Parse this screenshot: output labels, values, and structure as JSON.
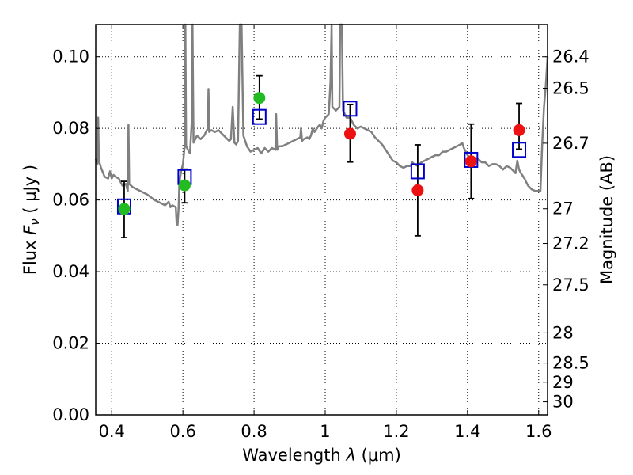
{
  "chart_data": {
    "type": "scatter",
    "xlabel": "Wavelength  λ (μm)",
    "ylabel": "Flux  Fν  ( μJy )",
    "ylabel_parts": {
      "prefix": "Flux  ",
      "symbol": "F",
      "subscript": "ν",
      "unit": "  ( μJy )"
    },
    "xlabel_parts": {
      "prefix": "Wavelength  ",
      "symbol": "λ",
      "unit": " (μm)"
    },
    "right_ylabel": "Magnitude (AB)",
    "xlim": [
      0.355,
      1.625
    ],
    "ylim": [
      0.0,
      0.109
    ],
    "grid": true,
    "x_ticks": [
      {
        "value": 0.4,
        "label": "0.4"
      },
      {
        "value": 0.6,
        "label": "0.6"
      },
      {
        "value": 0.8,
        "label": "0.8"
      },
      {
        "value": 1.0,
        "label": "1"
      },
      {
        "value": 1.2,
        "label": "1.2"
      },
      {
        "value": 1.4,
        "label": "1.4"
      },
      {
        "value": 1.6,
        "label": "1.6"
      }
    ],
    "y_ticks": [
      {
        "value": 0.0,
        "label": "0.00"
      },
      {
        "value": 0.02,
        "label": "0.02"
      },
      {
        "value": 0.04,
        "label": "0.04"
      },
      {
        "value": 0.06,
        "label": "0.06"
      },
      {
        "value": 0.08,
        "label": "0.08"
      },
      {
        "value": 0.1,
        "label": "0.10"
      }
    ],
    "right_ticks": [
      {
        "value": 26.4,
        "label": "26.4"
      },
      {
        "value": 26.5,
        "label": "26.5"
      },
      {
        "value": 26.7,
        "label": "26.7"
      },
      {
        "value": 27.0,
        "label": "27"
      },
      {
        "value": 27.2,
        "label": "27.2"
      },
      {
        "value": 27.5,
        "label": "27.5"
      },
      {
        "value": 28.0,
        "label": "28"
      },
      {
        "value": 28.5,
        "label": "28.5"
      },
      {
        "value": 29.0,
        "label": "29"
      },
      {
        "value": 30.0,
        "label": "30"
      }
    ],
    "colors": {
      "spectrum": "#808080",
      "model_box": "#0000cc",
      "green_point": "#22bb22",
      "red_point": "#ee1111",
      "error_bar": "#000000"
    },
    "spectrum": [
      [
        0.355,
        0.0715
      ],
      [
        0.36,
        0.07
      ],
      [
        0.362,
        0.083
      ],
      [
        0.364,
        0.071
      ],
      [
        0.37,
        0.069
      ],
      [
        0.38,
        0.0665
      ],
      [
        0.39,
        0.066
      ],
      [
        0.395,
        0.068
      ],
      [
        0.4,
        0.066
      ],
      [
        0.405,
        0.067
      ],
      [
        0.41,
        0.0665
      ],
      [
        0.42,
        0.066
      ],
      [
        0.43,
        0.064
      ],
      [
        0.44,
        0.0645
      ],
      [
        0.445,
        0.0625
      ],
      [
        0.447,
        0.081
      ],
      [
        0.449,
        0.0645
      ],
      [
        0.46,
        0.0635
      ],
      [
        0.48,
        0.0625
      ],
      [
        0.5,
        0.0615
      ],
      [
        0.52,
        0.06
      ],
      [
        0.54,
        0.059
      ],
      [
        0.55,
        0.0585
      ],
      [
        0.56,
        0.0595
      ],
      [
        0.565,
        0.058
      ],
      [
        0.57,
        0.0585
      ],
      [
        0.58,
        0.058
      ],
      [
        0.582,
        0.054
      ],
      [
        0.585,
        0.053
      ],
      [
        0.588,
        0.058
      ],
      [
        0.59,
        0.065
      ],
      [
        0.595,
        0.068
      ],
      [
        0.6,
        0.07
      ],
      [
        0.605,
        0.075
      ],
      [
        0.607,
        0.109
      ],
      [
        0.609,
        0.075
      ],
      [
        0.62,
        0.073
      ],
      [
        0.625,
        0.082
      ],
      [
        0.627,
        0.109
      ],
      [
        0.63,
        0.076
      ],
      [
        0.64,
        0.078
      ],
      [
        0.65,
        0.077
      ],
      [
        0.66,
        0.078
      ],
      [
        0.67,
        0.08
      ],
      [
        0.672,
        0.091
      ],
      [
        0.674,
        0.079
      ],
      [
        0.68,
        0.0795
      ],
      [
        0.69,
        0.079
      ],
      [
        0.7,
        0.0795
      ],
      [
        0.71,
        0.0785
      ],
      [
        0.72,
        0.0775
      ],
      [
        0.73,
        0.0765
      ],
      [
        0.735,
        0.077
      ],
      [
        0.74,
        0.086
      ],
      [
        0.745,
        0.076
      ],
      [
        0.75,
        0.0755
      ],
      [
        0.755,
        0.0765
      ],
      [
        0.76,
        0.109
      ],
      [
        0.765,
        0.109
      ],
      [
        0.77,
        0.078
      ],
      [
        0.78,
        0.075
      ],
      [
        0.79,
        0.0735
      ],
      [
        0.8,
        0.074
      ],
      [
        0.81,
        0.0745
      ],
      [
        0.82,
        0.073
      ],
      [
        0.83,
        0.0745
      ],
      [
        0.84,
        0.0735
      ],
      [
        0.85,
        0.0745
      ],
      [
        0.86,
        0.074
      ],
      [
        0.862,
        0.084
      ],
      [
        0.865,
        0.074
      ],
      [
        0.87,
        0.075
      ],
      [
        0.88,
        0.075
      ],
      [
        0.89,
        0.0755
      ],
      [
        0.9,
        0.076
      ],
      [
        0.91,
        0.0765
      ],
      [
        0.92,
        0.077
      ],
      [
        0.93,
        0.0775
      ],
      [
        0.932,
        0.08
      ],
      [
        0.935,
        0.0765
      ],
      [
        0.94,
        0.077
      ],
      [
        0.95,
        0.0775
      ],
      [
        0.955,
        0.077
      ],
      [
        0.96,
        0.078
      ],
      [
        0.965,
        0.08
      ],
      [
        0.97,
        0.079
      ],
      [
        0.98,
        0.0805
      ],
      [
        0.985,
        0.081
      ],
      [
        0.99,
        0.08
      ],
      [
        0.995,
        0.082
      ],
      [
        1.0,
        0.083
      ],
      [
        1.01,
        0.084
      ],
      [
        1.015,
        0.093
      ],
      [
        1.018,
        0.109
      ],
      [
        1.02,
        0.086
      ],
      [
        1.03,
        0.085
      ],
      [
        1.04,
        0.086
      ],
      [
        1.042,
        0.109
      ],
      [
        1.047,
        0.109
      ],
      [
        1.05,
        0.085
      ],
      [
        1.06,
        0.083
      ],
      [
        1.07,
        0.083
      ],
      [
        1.08,
        0.081
      ],
      [
        1.09,
        0.08
      ],
      [
        1.1,
        0.0805
      ],
      [
        1.11,
        0.08
      ],
      [
        1.12,
        0.0795
      ],
      [
        1.13,
        0.079
      ],
      [
        1.14,
        0.0775
      ],
      [
        1.15,
        0.0765
      ],
      [
        1.16,
        0.0755
      ],
      [
        1.17,
        0.074
      ],
      [
        1.18,
        0.0725
      ],
      [
        1.19,
        0.071
      ],
      [
        1.2,
        0.0705
      ],
      [
        1.21,
        0.0695
      ],
      [
        1.22,
        0.069
      ],
      [
        1.23,
        0.0695
      ],
      [
        1.24,
        0.0695
      ],
      [
        1.245,
        0.0705
      ],
      [
        1.25,
        0.07
      ],
      [
        1.26,
        0.0695
      ],
      [
        1.27,
        0.0705
      ],
      [
        1.28,
        0.071
      ],
      [
        1.29,
        0.0715
      ],
      [
        1.3,
        0.072
      ],
      [
        1.31,
        0.0725
      ],
      [
        1.32,
        0.0725
      ],
      [
        1.33,
        0.0735
      ],
      [
        1.34,
        0.0735
      ],
      [
        1.35,
        0.074
      ],
      [
        1.36,
        0.0745
      ],
      [
        1.37,
        0.075
      ],
      [
        1.38,
        0.0755
      ],
      [
        1.385,
        0.076
      ],
      [
        1.39,
        0.0745
      ],
      [
        1.4,
        0.0725
      ],
      [
        1.41,
        0.0715
      ],
      [
        1.42,
        0.0715
      ],
      [
        1.43,
        0.0715
      ],
      [
        1.44,
        0.0705
      ],
      [
        1.45,
        0.0705
      ],
      [
        1.46,
        0.0695
      ],
      [
        1.47,
        0.07
      ],
      [
        1.48,
        0.07
      ],
      [
        1.49,
        0.0695
      ],
      [
        1.5,
        0.0685
      ],
      [
        1.51,
        0.0695
      ],
      [
        1.52,
        0.069
      ],
      [
        1.53,
        0.068
      ],
      [
        1.535,
        0.0675
      ],
      [
        1.54,
        0.071
      ],
      [
        1.545,
        0.0685
      ],
      [
        1.55,
        0.0675
      ],
      [
        1.56,
        0.066
      ],
      [
        1.57,
        0.064
      ],
      [
        1.58,
        0.063
      ],
      [
        1.59,
        0.0625
      ],
      [
        1.6,
        0.0625
      ],
      [
        1.605,
        0.0625
      ],
      [
        1.61,
        0.076
      ],
      [
        1.615,
        0.086
      ],
      [
        1.62,
        0.092
      ],
      [
        1.625,
        0.1
      ]
    ],
    "model_boxes": [
      {
        "x": 0.435,
        "y": 0.0582
      },
      {
        "x": 0.605,
        "y": 0.0664
      },
      {
        "x": 0.815,
        "y": 0.0832
      },
      {
        "x": 1.07,
        "y": 0.0855
      },
      {
        "x": 1.26,
        "y": 0.068
      },
      {
        "x": 1.41,
        "y": 0.0712
      },
      {
        "x": 1.545,
        "y": 0.074
      }
    ],
    "observed_points": [
      {
        "x": 0.435,
        "y": 0.0575,
        "err_low": 0.0495,
        "err_high": 0.0652,
        "color": "green"
      },
      {
        "x": 0.605,
        "y": 0.0641,
        "err_low": 0.0592,
        "err_high": 0.0686,
        "color": "green"
      },
      {
        "x": 0.815,
        "y": 0.0885,
        "err_low": 0.0826,
        "err_high": 0.0947,
        "color": "green"
      },
      {
        "x": 1.07,
        "y": 0.0785,
        "err_low": 0.0706,
        "err_high": 0.0867,
        "color": "red"
      },
      {
        "x": 1.26,
        "y": 0.0627,
        "err_low": 0.05,
        "err_high": 0.0754,
        "color": "red"
      },
      {
        "x": 1.41,
        "y": 0.0708,
        "err_low": 0.0604,
        "err_high": 0.0812,
        "color": "red"
      },
      {
        "x": 1.545,
        "y": 0.0795,
        "err_low": 0.0742,
        "err_high": 0.087,
        "color": "red"
      }
    ]
  }
}
